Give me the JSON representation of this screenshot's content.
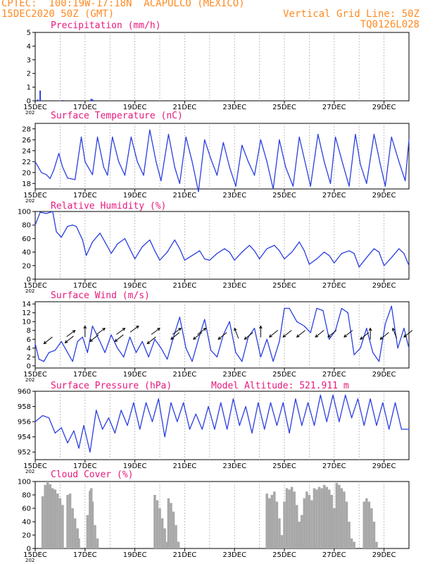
{
  "header": {
    "line1": "CPTEC:  100:19W-17:18N  ACAPULCO (MEXICO)",
    "line2": "15DEC2020 50Z (GMT)",
    "right1": "Vertical Grid Line: 50Z",
    "right2": "TQ0126L028"
  },
  "colors": {
    "header": "#ff8a24",
    "title": "#e8197c",
    "series": "#2b3fe0",
    "cloud": "#a8a8a8",
    "grid": "#b0b0b0"
  },
  "chart_data": [
    {
      "type": "bar",
      "title": "Precipitation (mm/h)",
      "x_range_days": [
        15,
        30
      ],
      "ylim": [
        0,
        5
      ],
      "yticks": [
        0,
        1,
        2,
        3,
        4,
        5
      ],
      "xticks": [
        "15DEC",
        "17DEC",
        "19DEC",
        "21DEC",
        "23DEC",
        "25DEC",
        "27DEC",
        "29DEC"
      ],
      "year_fragment": "202",
      "x": [
        15.1,
        15.2,
        16.1,
        17.25,
        17.3,
        25.0
      ],
      "values": [
        0.1,
        0.75,
        0.05,
        0.15,
        0.1,
        0.02
      ]
    },
    {
      "type": "line",
      "title": "Surface Temperature (nC)",
      "x_range_days": [
        15,
        30
      ],
      "ylim": [
        17,
        29
      ],
      "yticks": [
        18,
        20,
        22,
        24,
        26,
        28
      ],
      "xticks": [
        "15DEC",
        "17DEC",
        "19DEC",
        "21DEC",
        "23DEC",
        "25DEC",
        "27DEC",
        "29DEC"
      ],
      "year_fragment": "202",
      "x": [
        15.0,
        15.25,
        15.45,
        15.6,
        15.75,
        15.95,
        16.1,
        16.3,
        16.6,
        16.85,
        17.0,
        17.3,
        17.5,
        17.75,
        17.9,
        18.1,
        18.35,
        18.6,
        18.85,
        19.1,
        19.35,
        19.6,
        19.85,
        20.05,
        20.35,
        20.6,
        20.8,
        21.05,
        21.3,
        21.55,
        21.8,
        22.05,
        22.3,
        22.55,
        22.8,
        23.05,
        23.3,
        23.55,
        23.8,
        24.05,
        24.3,
        24.55,
        24.8,
        25.05,
        25.35,
        25.6,
        25.85,
        26.05,
        26.35,
        26.6,
        26.85,
        27.05,
        27.35,
        27.6,
        27.85,
        28.05,
        28.3,
        28.6,
        28.85,
        29.05,
        29.3,
        29.6,
        29.85,
        30.0
      ],
      "values": [
        22.0,
        20.0,
        19.6,
        18.9,
        20.5,
        23.5,
        21.0,
        19.0,
        18.7,
        26.5,
        22.0,
        19.6,
        26.5,
        21.0,
        19.5,
        26.5,
        22.0,
        19.5,
        26.5,
        22.0,
        19.5,
        27.8,
        22.0,
        18.5,
        27.0,
        21.0,
        18.0,
        26.5,
        22.0,
        16.5,
        26.0,
        22.5,
        19.5,
        25.5,
        21.0,
        17.5,
        25.0,
        22.0,
        19.5,
        26.0,
        22.0,
        17.0,
        26.0,
        21.0,
        17.5,
        26.5,
        21.5,
        17.5,
        27.0,
        22.0,
        18.0,
        26.5,
        21.5,
        17.5,
        27.0,
        21.5,
        18.0,
        27.0,
        21.5,
        17.5,
        26.5,
        22.0,
        18.5,
        26.0
      ]
    },
    {
      "type": "line",
      "title": "Relative Humidity (%)",
      "x_range_days": [
        15,
        30
      ],
      "ylim": [
        0,
        100
      ],
      "yticks": [
        0,
        20,
        40,
        60,
        80,
        100
      ],
      "xticks": [
        "15DEC",
        "17DEC",
        "19DEC",
        "21DEC",
        "23DEC",
        "25DEC",
        "27DEC",
        "29DEC"
      ],
      "year_fragment": "202",
      "x": [
        15.0,
        15.2,
        15.45,
        15.7,
        15.85,
        16.05,
        16.3,
        16.5,
        16.65,
        16.9,
        17.05,
        17.3,
        17.6,
        17.8,
        18.05,
        18.3,
        18.6,
        18.8,
        19.0,
        19.3,
        19.6,
        19.8,
        20.0,
        20.3,
        20.6,
        20.8,
        21.0,
        21.3,
        21.6,
        21.8,
        22.0,
        22.3,
        22.6,
        22.8,
        23.0,
        23.3,
        23.6,
        23.8,
        24.0,
        24.3,
        24.6,
        24.8,
        25.0,
        25.3,
        25.6,
        25.8,
        26.0,
        26.3,
        26.6,
        26.8,
        27.0,
        27.3,
        27.6,
        27.8,
        28.0,
        28.3,
        28.6,
        28.8,
        29.0,
        29.3,
        29.6,
        29.8,
        30.0
      ],
      "values": [
        80,
        99,
        97,
        100,
        70,
        62,
        78,
        80,
        78,
        58,
        35,
        55,
        68,
        55,
        38,
        52,
        60,
        45,
        30,
        48,
        58,
        42,
        28,
        40,
        58,
        45,
        28,
        35,
        42,
        30,
        28,
        38,
        45,
        40,
        28,
        40,
        50,
        42,
        30,
        45,
        50,
        42,
        30,
        40,
        55,
        42,
        22,
        30,
        40,
        35,
        24,
        38,
        42,
        38,
        18,
        32,
        45,
        40,
        20,
        32,
        45,
        38,
        20
      ]
    },
    {
      "type": "line",
      "title": "Surface Wind (m/s)",
      "x_range_days": [
        15,
        30
      ],
      "ylim": [
        -0.5,
        14.5
      ],
      "yticks": [
        0,
        2,
        4,
        6,
        8,
        10,
        12,
        14
      ],
      "xticks": [
        "15DEC",
        "17DEC",
        "19DEC",
        "21DEC",
        "23DEC",
        "25DEC",
        "27DEC",
        "29DEC"
      ],
      "year_fragment": "202",
      "x": [
        15.0,
        15.15,
        15.35,
        15.55,
        15.8,
        16.05,
        16.3,
        16.5,
        16.7,
        16.9,
        17.1,
        17.3,
        17.6,
        17.8,
        18.05,
        18.3,
        18.55,
        18.8,
        19.05,
        19.3,
        19.55,
        19.8,
        20.05,
        20.3,
        20.55,
        20.8,
        21.05,
        21.3,
        21.55,
        21.8,
        22.05,
        22.3,
        22.55,
        22.8,
        23.05,
        23.3,
        23.55,
        23.8,
        24.05,
        24.3,
        24.55,
        24.8,
        25.0,
        25.2,
        25.5,
        25.8,
        26.05,
        26.3,
        26.55,
        26.8,
        27.05,
        27.3,
        27.55,
        27.8,
        28.05,
        28.3,
        28.55,
        28.8,
        29.05,
        29.3,
        29.55,
        29.8,
        30.0
      ],
      "values": [
        5.0,
        1.5,
        1.0,
        3.0,
        3.5,
        5.5,
        3.0,
        1.0,
        5.5,
        6.5,
        3.0,
        9.0,
        5.5,
        3.0,
        7.0,
        4.0,
        2.0,
        6.5,
        3.0,
        5.5,
        2.0,
        6.0,
        4.0,
        1.5,
        6.5,
        11.0,
        4.0,
        1.0,
        6.0,
        10.5,
        3.5,
        2.0,
        7.0,
        10.0,
        3.0,
        1.0,
        6.5,
        8.5,
        2.0,
        6.0,
        1.0,
        5.5,
        13.0,
        13.0,
        10.0,
        9.0,
        7.5,
        13.0,
        12.5,
        6.0,
        8.0,
        13.0,
        12.0,
        2.5,
        4.0,
        8.5,
        3.0,
        1.0,
        9.5,
        13.5,
        4.0,
        8.5,
        4.0
      ],
      "arrows": [
        {
          "x": 15.35,
          "y": 5.0,
          "dir": "sw"
        },
        {
          "x": 16.2,
          "y": 5.2,
          "dir": "sw"
        },
        {
          "x": 16.6,
          "y": 8.0,
          "dir": "ne"
        },
        {
          "x": 17.0,
          "y": 9.0,
          "dir": "n"
        },
        {
          "x": 17.2,
          "y": 5.5,
          "dir": "sw"
        },
        {
          "x": 17.8,
          "y": 8.5,
          "dir": "ne"
        },
        {
          "x": 18.2,
          "y": 5.5,
          "dir": "sw"
        },
        {
          "x": 18.6,
          "y": 8.5,
          "dir": "ne"
        },
        {
          "x": 19.15,
          "y": 9.0,
          "dir": "ne"
        },
        {
          "x": 19.5,
          "y": 5.0,
          "dir": "sw"
        },
        {
          "x": 20.0,
          "y": 8.5,
          "dir": "ne"
        },
        {
          "x": 20.45,
          "y": 6.0,
          "dir": "sw"
        },
        {
          "x": 20.85,
          "y": 8.5,
          "dir": "ne"
        },
        {
          "x": 21.35,
          "y": 6.0,
          "dir": "sw"
        },
        {
          "x": 21.85,
          "y": 8.5,
          "dir": "ne"
        },
        {
          "x": 22.35,
          "y": 6.0,
          "dir": "sw"
        },
        {
          "x": 23.0,
          "y": 8.5,
          "dir": "nw"
        },
        {
          "x": 23.4,
          "y": 6.0,
          "dir": "sw"
        },
        {
          "x": 24.05,
          "y": 9.0,
          "dir": "n"
        },
        {
          "x": 24.4,
          "y": 6.5,
          "dir": "sw"
        },
        {
          "x": 24.95,
          "y": 6.5,
          "dir": "sw"
        },
        {
          "x": 25.5,
          "y": 6.5,
          "dir": "sw"
        },
        {
          "x": 26.25,
          "y": 6.5,
          "dir": "sw"
        },
        {
          "x": 26.75,
          "y": 6.5,
          "dir": "sw"
        },
        {
          "x": 27.4,
          "y": 6.5,
          "dir": "sw"
        },
        {
          "x": 28.05,
          "y": 6.0,
          "dir": "sw"
        },
        {
          "x": 28.45,
          "y": 8.5,
          "dir": "n"
        },
        {
          "x": 28.85,
          "y": 6.0,
          "dir": "sw"
        },
        {
          "x": 29.35,
          "y": 8.5,
          "dir": "nw"
        },
        {
          "x": 29.8,
          "y": 6.5,
          "dir": "sw"
        }
      ]
    },
    {
      "type": "line",
      "title": "Surface Pressure (hPa)",
      "annotation": "Model Altitude: 521.911  m",
      "x_range_days": [
        15,
        30
      ],
      "ylim": [
        951,
        960
      ],
      "yticks": [
        952,
        954,
        956,
        958,
        960
      ],
      "xticks": [
        "15DEC",
        "17DEC",
        "19DEC",
        "21DEC",
        "23DEC",
        "25DEC",
        "27DEC",
        "29DEC"
      ],
      "year_fragment": "202",
      "x": [
        15.0,
        15.3,
        15.55,
        15.8,
        16.05,
        16.3,
        16.55,
        16.75,
        16.95,
        17.2,
        17.45,
        17.7,
        17.95,
        18.2,
        18.45,
        18.7,
        18.95,
        19.2,
        19.45,
        19.7,
        19.95,
        20.2,
        20.45,
        20.7,
        20.95,
        21.2,
        21.45,
        21.7,
        21.95,
        22.2,
        22.45,
        22.7,
        22.95,
        23.2,
        23.45,
        23.7,
        23.95,
        24.2,
        24.45,
        24.7,
        24.95,
        25.2,
        25.45,
        25.7,
        25.95,
        26.2,
        26.45,
        26.7,
        26.95,
        27.2,
        27.45,
        27.7,
        27.95,
        28.2,
        28.45,
        28.7,
        28.95,
        29.2,
        29.45,
        29.7,
        30.0
      ],
      "values": [
        956.0,
        956.8,
        956.5,
        954.5,
        955.2,
        953.2,
        954.8,
        952.5,
        955.5,
        952.0,
        957.5,
        955.0,
        956.5,
        954.5,
        957.5,
        955.5,
        958.5,
        955.0,
        958.5,
        956.0,
        959.0,
        954.0,
        958.5,
        956.0,
        958.5,
        955.0,
        957.0,
        955.0,
        958.0,
        955.0,
        958.5,
        955.0,
        959.0,
        955.5,
        958.0,
        954.5,
        958.5,
        955.0,
        958.5,
        955.5,
        958.5,
        954.5,
        959.0,
        955.5,
        958.5,
        955.5,
        959.5,
        956.0,
        959.5,
        956.0,
        959.5,
        956.5,
        959.0,
        955.5,
        959.0,
        955.5,
        958.5,
        955.0,
        958.5,
        955.0,
        955.0
      ]
    },
    {
      "type": "bar",
      "title": "Cloud Cover (%)",
      "x_range_days": [
        15,
        30
      ],
      "ylim": [
        0,
        100
      ],
      "yticks": [
        0,
        20,
        40,
        60,
        80,
        100
      ],
      "xticks": [
        "15DEC",
        "17DEC",
        "19DEC",
        "21DEC",
        "23DEC",
        "25DEC",
        "27DEC",
        "29DEC"
      ],
      "year_fragment": "202",
      "x": [
        15.3,
        15.4,
        15.5,
        15.6,
        15.7,
        15.8,
        15.9,
        16.0,
        16.1,
        16.3,
        16.4,
        16.5,
        16.6,
        16.7,
        16.75,
        17.1,
        17.2,
        17.25,
        17.3,
        17.4,
        17.5,
        19.8,
        19.9,
        20.0,
        20.1,
        20.2,
        20.3,
        20.35,
        20.45,
        20.55,
        20.65,
        20.75,
        24.3,
        24.4,
        24.5,
        24.6,
        24.7,
        24.8,
        24.9,
        25.0,
        25.1,
        25.2,
        25.3,
        25.4,
        25.5,
        25.6,
        25.7,
        25.8,
        25.9,
        26.0,
        26.1,
        26.2,
        26.3,
        26.4,
        26.5,
        26.6,
        26.7,
        26.8,
        26.9,
        27.0,
        27.1,
        27.2,
        27.3,
        27.4,
        27.5,
        27.6,
        27.7,
        27.8,
        28.2,
        28.3,
        28.4,
        28.5,
        28.6,
        28.7
      ],
      "values": [
        78,
        95,
        100,
        96,
        90,
        88,
        82,
        75,
        65,
        80,
        82,
        60,
        45,
        30,
        15,
        50,
        86,
        90,
        70,
        35,
        15,
        80,
        72,
        60,
        45,
        30,
        10,
        75,
        68,
        55,
        35,
        10,
        82,
        75,
        80,
        85,
        70,
        45,
        20,
        70,
        90,
        88,
        92,
        85,
        65,
        40,
        50,
        75,
        85,
        80,
        72,
        90,
        88,
        92,
        90,
        95,
        92,
        88,
        80,
        60,
        98,
        95,
        90,
        85,
        70,
        40,
        15,
        10,
        70,
        75,
        70,
        60,
        40,
        10
      ]
    }
  ]
}
